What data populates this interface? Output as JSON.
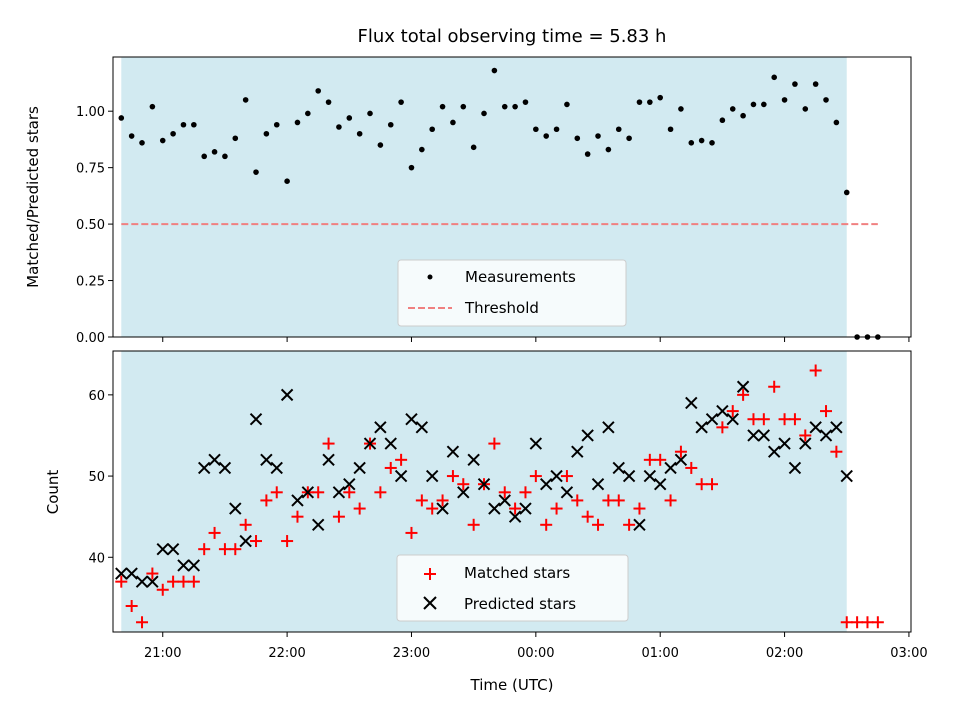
{
  "chart_data": [
    {
      "type": "scatter",
      "title": "Flux total observing time = 5.83 h",
      "xlabel": "",
      "ylabel": "Matched/Predicted stars",
      "xlim": [
        "20:36",
        "03:01"
      ],
      "ylim": [
        0.0,
        1.24
      ],
      "yticks": [
        "0.00",
        "0.25",
        "0.50",
        "0.75",
        "1.00"
      ],
      "shaded_interval": {
        "from": "20:40",
        "to": "02:30",
        "color": "#add8e6"
      },
      "grid": false,
      "legend_position": "lower-center",
      "series": [
        {
          "name": "Measurements",
          "marker": "dot",
          "color": "#000000",
          "points": [
            [
              "20:40",
              0.97
            ],
            [
              "20:45",
              0.89
            ],
            [
              "20:50",
              0.86
            ],
            [
              "20:55",
              1.02
            ],
            [
              "21:00",
              0.87
            ],
            [
              "21:05",
              0.9
            ],
            [
              "21:10",
              0.94
            ],
            [
              "21:15",
              0.94
            ],
            [
              "21:20",
              0.8
            ],
            [
              "21:25",
              0.82
            ],
            [
              "21:30",
              0.8
            ],
            [
              "21:35",
              0.88
            ],
            [
              "21:40",
              1.05
            ],
            [
              "21:45",
              0.73
            ],
            [
              "21:50",
              0.9
            ],
            [
              "21:55",
              0.94
            ],
            [
              "22:00",
              0.69
            ],
            [
              "22:05",
              0.95
            ],
            [
              "22:10",
              0.99
            ],
            [
              "22:15",
              1.09
            ],
            [
              "22:20",
              1.04
            ],
            [
              "22:25",
              0.93
            ],
            [
              "22:30",
              0.97
            ],
            [
              "22:35",
              0.9
            ],
            [
              "22:40",
              0.99
            ],
            [
              "22:45",
              0.85
            ],
            [
              "22:50",
              0.94
            ],
            [
              "22:55",
              1.04
            ],
            [
              "23:00",
              0.75
            ],
            [
              "23:05",
              0.83
            ],
            [
              "23:10",
              0.92
            ],
            [
              "23:15",
              1.02
            ],
            [
              "23:20",
              0.95
            ],
            [
              "23:25",
              1.02
            ],
            [
              "23:30",
              0.84
            ],
            [
              "23:35",
              0.99
            ],
            [
              "23:40",
              1.18
            ],
            [
              "23:45",
              1.02
            ],
            [
              "23:50",
              1.02
            ],
            [
              "23:55",
              1.04
            ],
            [
              "00:00",
              0.92
            ],
            [
              "00:05",
              0.89
            ],
            [
              "00:10",
              0.92
            ],
            [
              "00:15",
              1.03
            ],
            [
              "00:20",
              0.88
            ],
            [
              "00:25",
              0.81
            ],
            [
              "00:30",
              0.89
            ],
            [
              "00:35",
              0.83
            ],
            [
              "00:40",
              0.92
            ],
            [
              "00:45",
              0.88
            ],
            [
              "00:50",
              1.04
            ],
            [
              "00:55",
              1.04
            ],
            [
              "01:00",
              1.06
            ],
            [
              "01:05",
              0.92
            ],
            [
              "01:10",
              1.01
            ],
            [
              "01:15",
              0.86
            ],
            [
              "01:20",
              0.87
            ],
            [
              "01:25",
              0.86
            ],
            [
              "01:30",
              0.96
            ],
            [
              "01:35",
              1.01
            ],
            [
              "01:40",
              0.98
            ],
            [
              "01:45",
              1.03
            ],
            [
              "01:50",
              1.03
            ],
            [
              "01:55",
              1.15
            ],
            [
              "02:00",
              1.05
            ],
            [
              "02:05",
              1.12
            ],
            [
              "02:10",
              1.01
            ],
            [
              "02:15",
              1.12
            ],
            [
              "02:20",
              1.05
            ],
            [
              "02:25",
              0.95
            ],
            [
              "02:30",
              0.64
            ],
            [
              "02:35",
              0.0
            ],
            [
              "02:40",
              0.0
            ],
            [
              "02:45",
              0.0
            ]
          ]
        },
        {
          "name": "Threshold",
          "marker": "dashed-line",
          "color": "#f08080",
          "points": [
            [
              "20:40",
              0.5
            ],
            [
              "02:45",
              0.5
            ]
          ]
        }
      ]
    },
    {
      "type": "scatter",
      "title": "",
      "xlabel": "Time (UTC)",
      "ylabel": "Count",
      "xlim": [
        "20:36",
        "03:01"
      ],
      "ylim": [
        30.8,
        65.4
      ],
      "xticks": [
        "21:00",
        "22:00",
        "23:00",
        "00:00",
        "01:00",
        "02:00",
        "03:00"
      ],
      "yticks": [
        "40",
        "50",
        "60"
      ],
      "shaded_interval": {
        "from": "20:40",
        "to": "02:30",
        "color": "#add8e6"
      },
      "grid": false,
      "legend_position": "lower-center",
      "series": [
        {
          "name": "Matched stars",
          "marker": "plus",
          "color": "#ff0000",
          "points": [
            [
              "20:40",
              37
            ],
            [
              "20:45",
              34
            ],
            [
              "20:50",
              32
            ],
            [
              "20:55",
              38
            ],
            [
              "21:00",
              36
            ],
            [
              "21:05",
              37
            ],
            [
              "21:10",
              37
            ],
            [
              "21:15",
              37
            ],
            [
              "21:20",
              41
            ],
            [
              "21:25",
              43
            ],
            [
              "21:30",
              41
            ],
            [
              "21:35",
              41
            ],
            [
              "21:40",
              44
            ],
            [
              "21:45",
              42
            ],
            [
              "21:50",
              47
            ],
            [
              "21:55",
              48
            ],
            [
              "22:00",
              42
            ],
            [
              "22:05",
              45
            ],
            [
              "22:10",
              48
            ],
            [
              "22:15",
              48
            ],
            [
              "22:20",
              54
            ],
            [
              "22:25",
              45
            ],
            [
              "22:30",
              48
            ],
            [
              "22:35",
              46
            ],
            [
              "22:40",
              54
            ],
            [
              "22:45",
              48
            ],
            [
              "22:50",
              51
            ],
            [
              "22:55",
              52
            ],
            [
              "23:00",
              43
            ],
            [
              "23:05",
              47
            ],
            [
              "23:10",
              46
            ],
            [
              "23:15",
              47
            ],
            [
              "23:20",
              50
            ],
            [
              "23:25",
              49
            ],
            [
              "23:30",
              44
            ],
            [
              "23:35",
              49
            ],
            [
              "23:40",
              54
            ],
            [
              "23:45",
              48
            ],
            [
              "23:50",
              46
            ],
            [
              "23:55",
              48
            ],
            [
              "00:00",
              50
            ],
            [
              "00:05",
              44
            ],
            [
              "00:10",
              46
            ],
            [
              "00:15",
              50
            ],
            [
              "00:20",
              47
            ],
            [
              "00:25",
              45
            ],
            [
              "00:30",
              44
            ],
            [
              "00:35",
              47
            ],
            [
              "00:40",
              47
            ],
            [
              "00:45",
              44
            ],
            [
              "00:50",
              46
            ],
            [
              "00:55",
              52
            ],
            [
              "01:00",
              52
            ],
            [
              "01:05",
              47
            ],
            [
              "01:10",
              53
            ],
            [
              "01:15",
              51
            ],
            [
              "01:20",
              49
            ],
            [
              "01:25",
              49
            ],
            [
              "01:30",
              56
            ],
            [
              "01:35",
              58
            ],
            [
              "01:40",
              60
            ],
            [
              "01:45",
              57
            ],
            [
              "01:50",
              57
            ],
            [
              "01:55",
              61
            ],
            [
              "02:00",
              57
            ],
            [
              "02:05",
              57
            ],
            [
              "02:10",
              55
            ],
            [
              "02:15",
              63
            ],
            [
              "02:20",
              58
            ],
            [
              "02:25",
              53
            ],
            [
              "02:30",
              32
            ],
            [
              "02:35",
              32
            ],
            [
              "02:40",
              32
            ],
            [
              "02:45",
              32
            ]
          ]
        },
        {
          "name": "Predicted stars",
          "marker": "x",
          "color": "#000000",
          "points": [
            [
              "20:40",
              38
            ],
            [
              "20:45",
              38
            ],
            [
              "20:50",
              37
            ],
            [
              "20:55",
              37
            ],
            [
              "21:00",
              41
            ],
            [
              "21:05",
              41
            ],
            [
              "21:10",
              39
            ],
            [
              "21:15",
              39
            ],
            [
              "21:20",
              51
            ],
            [
              "21:25",
              52
            ],
            [
              "21:30",
              51
            ],
            [
              "21:35",
              46
            ],
            [
              "21:40",
              42
            ],
            [
              "21:45",
              57
            ],
            [
              "21:50",
              52
            ],
            [
              "21:55",
              51
            ],
            [
              "22:00",
              60
            ],
            [
              "22:05",
              47
            ],
            [
              "22:10",
              48
            ],
            [
              "22:15",
              44
            ],
            [
              "22:20",
              52
            ],
            [
              "22:25",
              48
            ],
            [
              "22:30",
              49
            ],
            [
              "22:35",
              51
            ],
            [
              "22:40",
              54
            ],
            [
              "22:45",
              56
            ],
            [
              "22:50",
              54
            ],
            [
              "22:55",
              50
            ],
            [
              "23:00",
              57
            ],
            [
              "23:05",
              56
            ],
            [
              "23:10",
              50
            ],
            [
              "23:15",
              46
            ],
            [
              "23:20",
              53
            ],
            [
              "23:25",
              48
            ],
            [
              "23:30",
              52
            ],
            [
              "23:35",
              49
            ],
            [
              "23:40",
              46
            ],
            [
              "23:45",
              47
            ],
            [
              "23:50",
              45
            ],
            [
              "23:55",
              46
            ],
            [
              "00:00",
              54
            ],
            [
              "00:05",
              49
            ],
            [
              "00:10",
              50
            ],
            [
              "00:15",
              48
            ],
            [
              "00:20",
              53
            ],
            [
              "00:25",
              55
            ],
            [
              "00:30",
              49
            ],
            [
              "00:35",
              56
            ],
            [
              "00:40",
              51
            ],
            [
              "00:45",
              50
            ],
            [
              "00:50",
              44
            ],
            [
              "00:55",
              50
            ],
            [
              "01:00",
              49
            ],
            [
              "01:05",
              51
            ],
            [
              "01:10",
              52
            ],
            [
              "01:15",
              59
            ],
            [
              "01:20",
              56
            ],
            [
              "01:25",
              57
            ],
            [
              "01:30",
              58
            ],
            [
              "01:35",
              57
            ],
            [
              "01:40",
              61
            ],
            [
              "01:45",
              55
            ],
            [
              "01:50",
              55
            ],
            [
              "01:55",
              53
            ],
            [
              "02:00",
              54
            ],
            [
              "02:05",
              51
            ],
            [
              "02:10",
              54
            ],
            [
              "02:15",
              56
            ],
            [
              "02:20",
              55
            ],
            [
              "02:25",
              56
            ],
            [
              "02:30",
              50
            ]
          ]
        }
      ]
    }
  ]
}
